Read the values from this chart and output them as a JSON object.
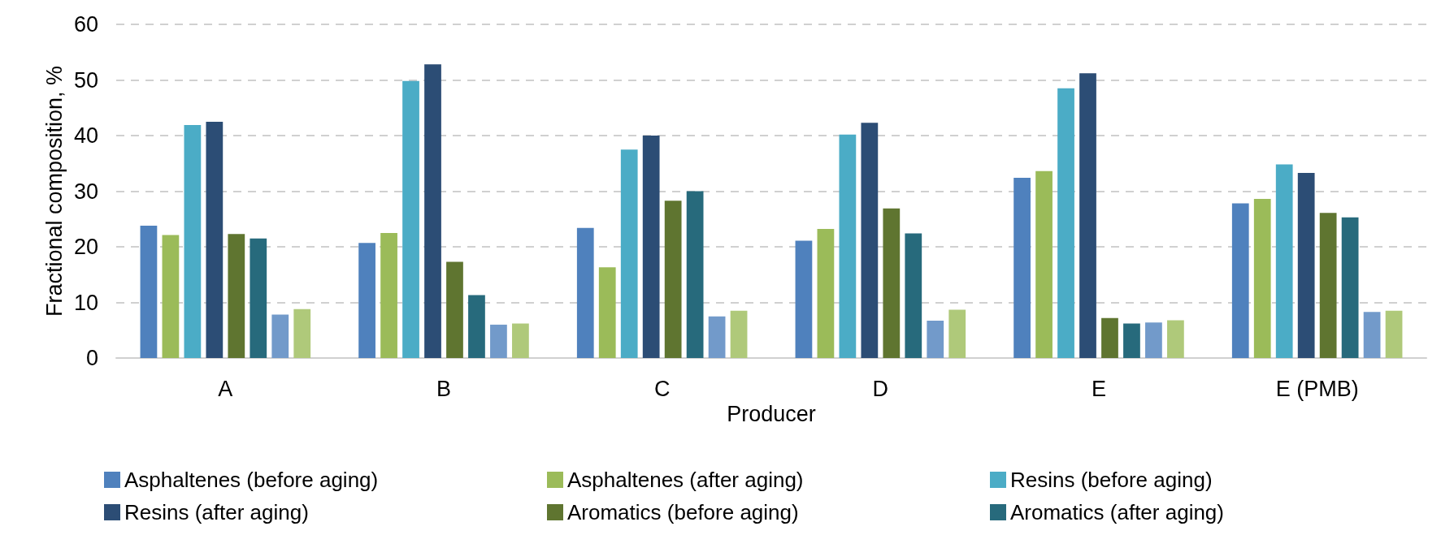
{
  "chart_data": {
    "type": "bar",
    "xlabel": "Producer",
    "ylabel": "Fractional composition, %",
    "categories": [
      "A",
      "B",
      "C",
      "D",
      "E",
      "E (PMB)"
    ],
    "series": [
      {
        "name": "Asphaltenes (before aging)",
        "color": "#4f81bd",
        "values": [
          23.8,
          20.7,
          23.4,
          21.1,
          32.4,
          27.8
        ]
      },
      {
        "name": "Asphaltenes (after aging)",
        "color": "#9bbb59",
        "values": [
          22.1,
          22.5,
          16.3,
          23.2,
          33.6,
          28.6
        ]
      },
      {
        "name": "Resins (before aging)",
        "color": "#4bacc6",
        "values": [
          41.9,
          49.8,
          37.5,
          40.2,
          48.5,
          34.8
        ]
      },
      {
        "name": "Resins (after aging)",
        "color": "#2c4d75",
        "values": [
          42.5,
          52.8,
          40.0,
          42.3,
          51.2,
          33.3
        ]
      },
      {
        "name": "Aromatics (before aging)",
        "color": "#5f7530",
        "values": [
          22.3,
          17.3,
          28.3,
          26.9,
          7.2,
          26.1
        ]
      },
      {
        "name": "Aromatics (after aging)",
        "color": "#276a7c",
        "values": [
          21.5,
          11.3,
          30.0,
          22.4,
          6.2,
          25.3
        ]
      },
      {
        "color": "#729aca",
        "values": [
          7.8,
          6.0,
          7.5,
          6.7,
          6.4,
          8.3
        ]
      },
      {
        "color": "#afc97a",
        "values": [
          8.8,
          6.2,
          8.5,
          8.7,
          6.8,
          8.5
        ]
      }
    ],
    "ylim": [
      0,
      60
    ],
    "yticks": [
      0,
      10,
      20,
      30,
      40,
      50,
      60
    ],
    "grid": "y",
    "legend": "bottom"
  }
}
